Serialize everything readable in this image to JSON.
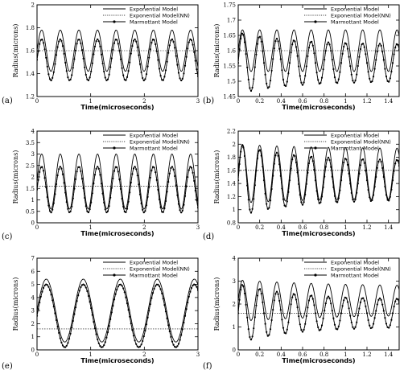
{
  "chart_data": [
    {
      "type": "line",
      "panel_label": "(a)",
      "xlabel": "Time(microseconds)",
      "ylabel": "Radius(microns)",
      "xlim": [
        0,
        3
      ],
      "ylim": [
        1.2,
        2
      ],
      "xticks": [
        "0",
        "1",
        "2",
        "3"
      ],
      "yticks": [
        "1.2",
        "1.4",
        "1.6",
        "1.8",
        "2"
      ],
      "grid": false,
      "legend": "top-right",
      "baseline": 1.6,
      "series": [
        {
          "name": "Exponential Model",
          "style": "solid",
          "model": {
            "equilibrium": 1.6,
            "period": 0.347,
            "amplitudes": [
              0.18
            ],
            "damping": 0
          }
        },
        {
          "name": "Exponential Model(NN)",
          "style": "dotted",
          "model": {
            "equilibrium": 1.52,
            "period": 0.347,
            "amplitudes": [
              0.15,
              0.18
            ],
            "damping": 0
          }
        },
        {
          "name": "Marmottant Model",
          "style": "marker",
          "model": {
            "equilibrium": 1.52,
            "period": 0.347,
            "amplitudes": [
              0.15,
              0.18
            ],
            "damping": 0
          }
        }
      ]
    },
    {
      "type": "line",
      "panel_label": "(b)",
      "xlabel": "Time(microseconds)",
      "ylabel": "Radius(microns)",
      "xlim": [
        0,
        1.5
      ],
      "ylim": [
        1.45,
        1.75
      ],
      "xticks": [
        "0",
        "0.2",
        "0.4",
        "0.6",
        "0.8",
        "1",
        "1.2",
        "1.4"
      ],
      "yticks": [
        "1.45",
        "1.5",
        "1.55",
        "1.6",
        "1.65",
        "1.7",
        "1.75"
      ],
      "grid": false,
      "legend": "top-right",
      "baseline": 1.6,
      "series": [
        {
          "name": "Exponential Model",
          "style": "solid",
          "model": {
            "equilibrium": 1.6,
            "period": 0.16,
            "amplitudes": [
              0.068
            ],
            "damping": 0
          }
        },
        {
          "name": "Exponential Model(NN)",
          "style": "dotted",
          "model": {
            "equilibrium": 1.56,
            "period": 0.16,
            "amplitudes": [
              0.06,
              0.1
            ],
            "damping": 3
          }
        },
        {
          "name": "Marmottant Model",
          "style": "marker",
          "model": {
            "equilibrium": 1.56,
            "period": 0.16,
            "amplitudes": [
              0.06,
              0.1
            ],
            "damping": 3
          }
        }
      ]
    },
    {
      "type": "line",
      "panel_label": "(c)",
      "xlabel": "Time(microseconds)",
      "ylabel": "Radius(microns)",
      "xlim": [
        0,
        3
      ],
      "ylim": [
        0,
        4
      ],
      "xticks": [
        "0",
        "1",
        "2",
        "3"
      ],
      "yticks": [
        "0",
        "0.5",
        "1",
        "1.5",
        "2",
        "2.5",
        "3",
        "3.5",
        "4"
      ],
      "grid": false,
      "legend": "top-right",
      "baseline": 1.6,
      "series": [
        {
          "name": "Exponential Model",
          "style": "solid",
          "model": {
            "equilibrium": 1.8,
            "period": 0.347,
            "amplitudes": [
              1.2
            ],
            "damping": 0
          }
        },
        {
          "name": "Exponential Model(NN)",
          "style": "dotted",
          "model": {
            "equilibrium": 1.45,
            "period": 0.347,
            "amplitudes": [
              0.85,
              1.0
            ],
            "damping": 0
          }
        },
        {
          "name": "Marmottant Model",
          "style": "marker",
          "model": {
            "equilibrium": 1.45,
            "period": 0.347,
            "amplitudes": [
              0.85,
              1.0
            ],
            "damping": 0
          }
        }
      ]
    },
    {
      "type": "line",
      "panel_label": "(d)",
      "xlabel": "Time(microseconds)",
      "ylabel": "Radius(microns)",
      "xlim": [
        0,
        1.5
      ],
      "ylim": [
        0.8,
        2.2
      ],
      "xticks": [
        "0",
        "0.2",
        "0.4",
        "0.6",
        "0.8",
        "1",
        "1.2",
        "1.4"
      ],
      "yticks": [
        "0.8",
        "1",
        "1.2",
        "1.4",
        "1.6",
        "1.8",
        "2",
        "2.2"
      ],
      "grid": false,
      "legend": "top-right",
      "baseline": 1.6,
      "series": [
        {
          "name": "Exponential Model",
          "style": "solid",
          "model": {
            "equilibrium": 1.55,
            "period": 0.16,
            "amplitudes": [
              0.38,
              0.45
            ],
            "damping": 2
          }
        },
        {
          "name": "Exponential Model(NN)",
          "style": "dotted",
          "model": {
            "equilibrium": 1.45,
            "period": 0.16,
            "amplitudes": [
              0.3,
              0.55
            ],
            "damping": 3
          }
        },
        {
          "name": "Marmottant Model",
          "style": "marker",
          "model": {
            "equilibrium": 1.45,
            "period": 0.16,
            "amplitudes": [
              0.3,
              0.55
            ],
            "damping": 3
          }
        }
      ]
    },
    {
      "type": "line",
      "panel_label": "(e)",
      "xlabel": "Time(microseconds)",
      "ylabel": "Radius(microns)",
      "xlim": [
        0,
        3
      ],
      "ylim": [
        0,
        7
      ],
      "xticks": [
        "0",
        "1",
        "2",
        "3"
      ],
      "yticks": [
        "0",
        "1",
        "2",
        "3",
        "4",
        "5",
        "6",
        "7"
      ],
      "grid": false,
      "legend": "top-right",
      "baseline": 1.6,
      "series": [
        {
          "name": "Exponential Model",
          "style": "solid",
          "model": {
            "equilibrium": 3.0,
            "period": 0.69,
            "amplitudes": [
              2.4
            ],
            "damping": 0
          }
        },
        {
          "name": "Exponential Model(NN)",
          "style": "dotted",
          "model": {
            "equilibrium": 2.6,
            "period": 0.69,
            "amplitudes": [
              2.0,
              2.4
            ],
            "damping": 0
          }
        },
        {
          "name": "Marmottant Model",
          "style": "marker",
          "model": {
            "equilibrium": 2.6,
            "period": 0.69,
            "amplitudes": [
              2.0,
              2.4
            ],
            "damping": 0
          }
        }
      ]
    },
    {
      "type": "line",
      "panel_label": "(f)",
      "xlabel": "Time(microseconds)",
      "ylabel": "Radius(microns)",
      "xlim": [
        0,
        1.5
      ],
      "ylim": [
        0,
        4
      ],
      "xticks": [
        "0",
        "0.2",
        "0.4",
        "0.6",
        "0.8",
        "1",
        "1.2",
        "1.4"
      ],
      "yticks": [
        "0",
        "1",
        "2",
        "3",
        "4"
      ],
      "grid": false,
      "legend": "top-right",
      "baseline": 1.6,
      "series": [
        {
          "name": "Exponential Model",
          "style": "solid",
          "model": {
            "equilibrium": 2.15,
            "period": 0.16,
            "amplitudes": [
              0.6,
              0.9
            ],
            "damping": 1.5
          }
        },
        {
          "name": "Exponential Model(NN)",
          "style": "dotted",
          "model": {
            "equilibrium": 1.6,
            "period": 0.16,
            "amplitudes": [
              0.6,
              1.3
            ],
            "damping": 3
          }
        },
        {
          "name": "Marmottant Model",
          "style": "marker",
          "model": {
            "equilibrium": 1.6,
            "period": 0.16,
            "amplitudes": [
              0.6,
              1.3
            ],
            "damping": 3
          }
        }
      ]
    }
  ]
}
